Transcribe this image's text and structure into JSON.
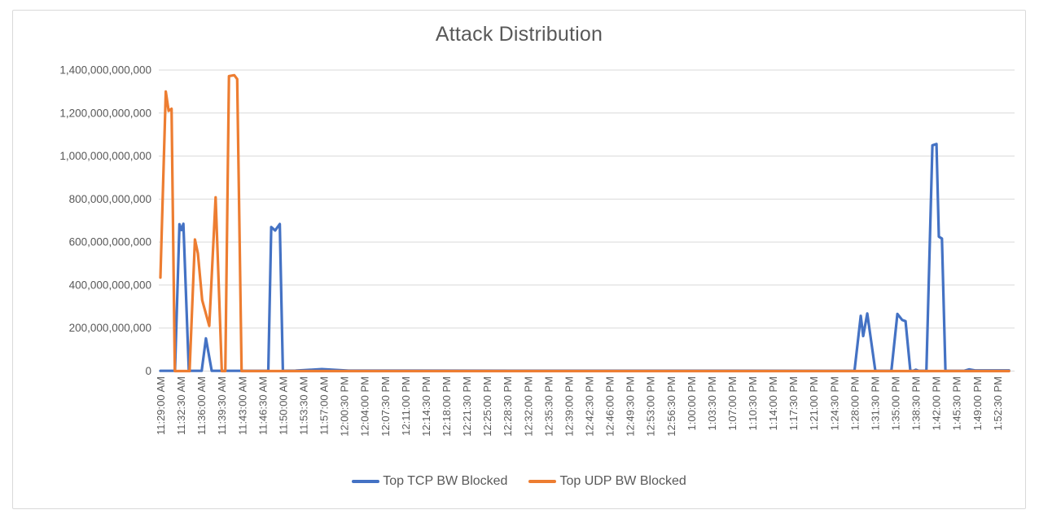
{
  "window": {
    "background": "#ffffff",
    "frame_border_color": "#D9D9D9",
    "gridline_color": "#D9D9D9",
    "text_color": "#595959"
  },
  "chart_data": {
    "type": "line",
    "title": "Attack Distribution",
    "grid": true,
    "legend_position": "bottom",
    "x_axis": {
      "interval_seconds": 210,
      "categories": [
        "11:29:00 AM",
        "11:32:30 AM",
        "11:36:00 AM",
        "11:39:30 AM",
        "11:43:00 AM",
        "11:46:30 AM",
        "11:50:00 AM",
        "11:53:30 AM",
        "11:57:00 AM",
        "12:00:30 PM",
        "12:04:00 PM",
        "12:07:30 PM",
        "12:11:00 PM",
        "12:14:30 PM",
        "12:18:00 PM",
        "12:21:30 PM",
        "12:25:00 PM",
        "12:28:30 PM",
        "12:32:00 PM",
        "12:35:30 PM",
        "12:39:00 PM",
        "12:42:30 PM",
        "12:46:00 PM",
        "12:49:30 PM",
        "12:53:00 PM",
        "12:56:30 PM",
        "1:00:00 PM",
        "1:03:30 PM",
        "1:07:00 PM",
        "1:10:30 PM",
        "1:14:00 PM",
        "1:17:30 PM",
        "1:21:00 PM",
        "1:24:30 PM",
        "1:28:00 PM",
        "1:31:30 PM",
        "1:35:00 PM",
        "1:38:30 PM",
        "1:42:00 PM",
        "1:45:30 PM",
        "1:49:00 PM",
        "1:52:30 PM"
      ]
    },
    "y_axis": {
      "min": 0,
      "max": 1400000000000,
      "tick_step": 200000000000,
      "value_scale": 1000000000,
      "tick_labels": [
        "0",
        "200,000,000,000",
        "400,000,000,000",
        "600,000,000,000",
        "800,000,000,000",
        "1,000,000,000,000",
        "1,200,000,000,000",
        "1,400,000,000,000"
      ]
    },
    "series": [
      {
        "name": "Top TCP BW Blocked",
        "color": "#4472C4",
        "points_format": "[seconds_after_11:29:00, value_in_billions]",
        "points": [
          [
            0,
            1
          ],
          [
            150,
            1
          ],
          [
            196,
            683
          ],
          [
            218,
            656
          ],
          [
            236,
            685
          ],
          [
            292,
            1
          ],
          [
            425,
            1
          ],
          [
            468,
            152
          ],
          [
            528,
            1
          ],
          [
            1110,
            1
          ],
          [
            1140,
            670
          ],
          [
            1180,
            654
          ],
          [
            1228,
            684
          ],
          [
            1260,
            1
          ],
          [
            1390,
            2
          ],
          [
            1660,
            9
          ],
          [
            1935,
            2
          ],
          [
            7140,
            1
          ],
          [
            7205,
            257
          ],
          [
            7230,
            163
          ],
          [
            7272,
            268
          ],
          [
            7355,
            1
          ],
          [
            7520,
            1
          ],
          [
            7582,
            266
          ],
          [
            7630,
            238
          ],
          [
            7665,
            232
          ],
          [
            7715,
            1
          ],
          [
            7745,
            1
          ],
          [
            7772,
            6
          ],
          [
            7800,
            1
          ],
          [
            7880,
            1
          ],
          [
            7942,
            1050
          ],
          [
            7984,
            1056
          ],
          [
            8008,
            625
          ],
          [
            8040,
            616
          ],
          [
            8076,
            1
          ],
          [
            8270,
            1
          ],
          [
            8320,
            8
          ],
          [
            8380,
            3
          ],
          [
            8730,
            3
          ]
        ]
      },
      {
        "name": "Top UDP BW Blocked",
        "color": "#ED7D31",
        "points_format": "[seconds_after_11:29:00, value_in_billions]",
        "points": [
          [
            0,
            435
          ],
          [
            55,
            1300
          ],
          [
            85,
            1210
          ],
          [
            115,
            1220
          ],
          [
            148,
            0
          ],
          [
            300,
            0
          ],
          [
            355,
            612
          ],
          [
            385,
            548
          ],
          [
            430,
            330
          ],
          [
            503,
            210
          ],
          [
            568,
            808
          ],
          [
            632,
            0
          ],
          [
            668,
            0
          ],
          [
            705,
            1372
          ],
          [
            760,
            1376
          ],
          [
            790,
            1358
          ],
          [
            835,
            0
          ],
          [
            8730,
            0
          ]
        ]
      }
    ]
  }
}
